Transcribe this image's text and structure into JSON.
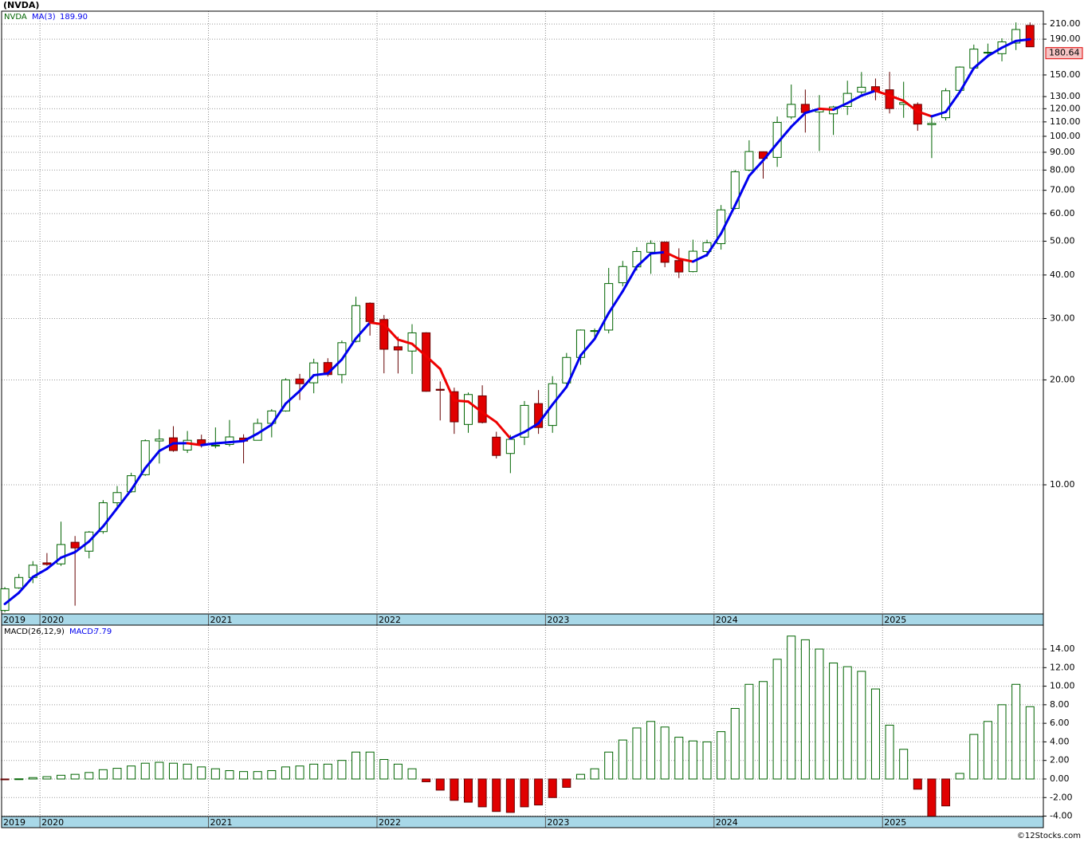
{
  "chart_data": [
    {
      "type": "candlestick",
      "title": "(NVDA)",
      "symbol": "NVDA",
      "log_scale": true,
      "grid": true,
      "ylim": [
        4.26,
        228.6
      ],
      "yticks": [
        {
          "value": 10,
          "label": "10.00"
        },
        {
          "value": 20,
          "label": "20.00"
        },
        {
          "value": 30,
          "label": "30.00"
        },
        {
          "value": 40,
          "label": "40.00"
        },
        {
          "value": 50,
          "label": "50.00"
        },
        {
          "value": 60,
          "label": "60.00"
        },
        {
          "value": 70,
          "label": "70.00"
        },
        {
          "value": 80,
          "label": "80.00"
        },
        {
          "value": 90,
          "label": "90.00"
        },
        {
          "value": 100,
          "label": "100.00"
        },
        {
          "value": 110,
          "label": "110.00"
        },
        {
          "value": 120,
          "label": "120.00"
        },
        {
          "value": 130,
          "label": "130.00"
        },
        {
          "value": 150,
          "label": "150.00"
        },
        {
          "value": 190,
          "label": "190.00"
        },
        {
          "value": 210,
          "label": "210.00"
        }
      ],
      "xlim": [
        -0.23,
        73.95
      ],
      "xticks": [
        {
          "value": -0.5,
          "label": "2019"
        },
        {
          "value": 2.5,
          "label": "2020"
        },
        {
          "value": 14.5,
          "label": "2021"
        },
        {
          "value": 26.5,
          "label": "2022"
        },
        {
          "value": 38.5,
          "label": "2023"
        },
        {
          "value": 50.5,
          "label": "2024"
        },
        {
          "value": 62.5,
          "label": "2025"
        }
      ],
      "up_color": "#006400",
      "down_color": "#e00000",
      "open": [
        4.36,
        5.06,
        5.42,
        5.97,
        5.93,
        6.84,
        6.45,
        7.34,
        8.88,
        9.55,
        10.69,
        13.36,
        13.64,
        12.58,
        13.47,
        12.99,
        13.05,
        13.62,
        13.42,
        15.01,
        16.29,
        20.12,
        19.62,
        22.43,
        20.71,
        25.8,
        33.2,
        29.8,
        24.9,
        24.2,
        27.3,
        18.8,
        18.5,
        14.9,
        18.0,
        13.7,
        12.3,
        13.7,
        17.1,
        14.8,
        19.6,
        23.2,
        27.7,
        27.8,
        38.0,
        42.2,
        46.5,
        49.7,
        44.0,
        40.9,
        46.7,
        49.2,
        62.1,
        80.0,
        90.3,
        87.0,
        113.6,
        123.5,
        117.5,
        116.0,
        121.8,
        134.0,
        138.8,
        136.0,
        123.5,
        123.5,
        108.0,
        113.1,
        135.5,
        157.0,
        174.1,
        172.6,
        185.2,
        208.1
      ],
      "high": [
        5.09,
        5.55,
        6.04,
        6.37,
        7.84,
        7.13,
        7.37,
        9.04,
        9.92,
        10.83,
        13.5,
        14.42,
        14.73,
        14.27,
        13.93,
        14.61,
        15.35,
        13.96,
        15.49,
        16.49,
        20.22,
        20.81,
        23.0,
        23.08,
        25.95,
        34.65,
        33.37,
        30.7,
        26.6,
        28.9,
        27.4,
        19.8,
        19.0,
        18.4,
        19.3,
        14.2,
        13.9,
        17.4,
        18.7,
        20.5,
        23.9,
        27.9,
        28.1,
        41.9,
        43.9,
        48.1,
        50.3,
        49.8,
        47.7,
        50.5,
        50.5,
        63.5,
        80.0,
        97.4,
        90.5,
        114.0,
        140.8,
        136.2,
        131.3,
        122.3,
        144.4,
        152.9,
        146.5,
        153.1,
        143.4,
        125.1,
        115.1,
        137.4,
        158.7,
        183.3,
        184.5,
        191.1,
        212.2,
        212.2
      ],
      "low": [
        4.31,
        5.03,
        5.22,
        5.86,
        5.85,
        4.5,
        6.15,
        7.24,
        8.51,
        9.49,
        10.61,
        11.51,
        12.44,
        12.34,
        12.79,
        12.73,
        12.88,
        11.52,
        13.4,
        13.68,
        16.21,
        17.51,
        18.31,
        20.45,
        19.56,
        25.6,
        26.8,
        20.89,
        20.87,
        20.8,
        18.5,
        15.3,
        14.0,
        14.1,
        15.0,
        11.9,
        10.8,
        13.0,
        14.0,
        14.1,
        19.3,
        22.1,
        26.3,
        27.2,
        37.1,
        41.2,
        40.3,
        42.1,
        39.2,
        40.7,
        45.1,
        47.3,
        61.7,
        79.4,
        75.6,
        81.7,
        112.0,
        102.5,
        90.7,
        100.9,
        115.1,
        132.1,
        126.9,
        116.3,
        113.0,
        103.7,
        86.6,
        111.0,
        135.4,
        155.0,
        168.8,
        164.1,
        176.8,
        180.6
      ],
      "close": [
        5.03,
        5.42,
        5.88,
        5.91,
        6.74,
        6.59,
        7.32,
        8.88,
        9.5,
        10.62,
        13.38,
        13.53,
        12.54,
        13.42,
        13.05,
        12.99,
        13.72,
        13.35,
        15.01,
        16.29,
        20.0,
        19.5,
        22.38,
        20.72,
        25.57,
        32.67,
        29.41,
        24.49,
        24.37,
        27.29,
        18.55,
        18.67,
        15.16,
        18.16,
        15.1,
        12.14,
        13.5,
        16.9,
        14.6,
        19.5,
        23.2,
        27.8,
        27.7,
        37.8,
        42.3,
        46.7,
        49.3,
        43.5,
        40.8,
        46.8,
        49.5,
        61.5,
        79.1,
        90.4,
        86.4,
        109.6,
        123.5,
        117.0,
        119.4,
        121.4,
        132.8,
        138.3,
        134.3,
        120.1,
        124.9,
        108.4,
        108.9,
        135.1,
        158.0,
        177.9,
        174.2,
        186.6,
        202.5,
        180.64
      ],
      "overlay": {
        "name": "MA(3)",
        "up_color": "#0000ee",
        "down_color": "#ee0000",
        "last_label": "189.90",
        "values": [
          4.55,
          4.9,
          5.44,
          5.74,
          6.18,
          6.41,
          6.88,
          7.6,
          8.57,
          9.67,
          11.17,
          12.51,
          13.15,
          13.16,
          13.0,
          13.15,
          13.25,
          13.35,
          14.03,
          14.88,
          17.1,
          18.6,
          20.63,
          20.87,
          22.89,
          26.32,
          29.22,
          28.86,
          26.09,
          25.38,
          23.4,
          21.5,
          17.46,
          17.33,
          16.14,
          15.13,
          13.58,
          14.18,
          15.0,
          17.0,
          19.1,
          23.5,
          26.23,
          31.1,
          35.93,
          42.27,
          46.1,
          46.5,
          44.53,
          43.7,
          45.7,
          52.6,
          63.37,
          77.0,
          85.3,
          95.47,
          106.5,
          116.7,
          119.97,
          119.27,
          124.53,
          130.83,
          135.13,
          130.9,
          126.43,
          117.8,
          114.07,
          117.47,
          134.0,
          157.0,
          170.03,
          179.57,
          187.77,
          189.9
        ]
      }
    },
    {
      "type": "bar",
      "label": "MACD(26,12,9)",
      "value_name": "MACD:",
      "grid": true,
      "ylim": [
        -4.04,
        16.58
      ],
      "yticks": [
        {
          "value": -4,
          "label": "-4.00"
        },
        {
          "value": -2,
          "label": "-2.00"
        },
        {
          "value": 0,
          "label": "0.00"
        },
        {
          "value": 2,
          "label": "2.00"
        },
        {
          "value": 4,
          "label": "4.00"
        },
        {
          "value": 6,
          "label": "6.00"
        },
        {
          "value": 8,
          "label": "8.00"
        },
        {
          "value": 10,
          "label": "10.00"
        },
        {
          "value": 12,
          "label": "12.00"
        },
        {
          "value": 14,
          "label": "14.00"
        }
      ],
      "xlim": [
        -0.23,
        73.95
      ],
      "xticks": [
        {
          "value": -0.5,
          "label": "2019"
        },
        {
          "value": 2.5,
          "label": "2020"
        },
        {
          "value": 14.5,
          "label": "2021"
        },
        {
          "value": 26.5,
          "label": "2022"
        },
        {
          "value": 38.5,
          "label": "2023"
        },
        {
          "value": 50.5,
          "label": "2024"
        },
        {
          "value": 62.5,
          "label": "2025"
        }
      ],
      "up_color": "#006400",
      "down_color": "#e00000",
      "values": [
        -0.05,
        0.02,
        0.15,
        0.25,
        0.4,
        0.5,
        0.7,
        1.0,
        1.15,
        1.4,
        1.7,
        1.8,
        1.7,
        1.6,
        1.3,
        1.1,
        0.9,
        0.8,
        0.8,
        0.9,
        1.3,
        1.4,
        1.6,
        1.6,
        2.0,
        2.9,
        2.9,
        2.1,
        1.6,
        1.1,
        -0.3,
        -1.2,
        -2.3,
        -2.5,
        -3.0,
        -3.5,
        -3.6,
        -3.0,
        -2.8,
        -2.0,
        -0.9,
        0.5,
        1.1,
        2.9,
        4.2,
        5.5,
        6.2,
        5.6,
        4.5,
        4.1,
        4.0,
        5.1,
        7.6,
        10.2,
        10.5,
        12.9,
        15.4,
        15.0,
        14.0,
        12.5,
        12.1,
        11.6,
        9.7,
        5.8,
        3.2,
        -1.1,
        -4.0,
        -2.9,
        0.6,
        4.8,
        6.2,
        8.0,
        10.2,
        7.79
      ]
    }
  ],
  "credit": "©12Stocks.com"
}
